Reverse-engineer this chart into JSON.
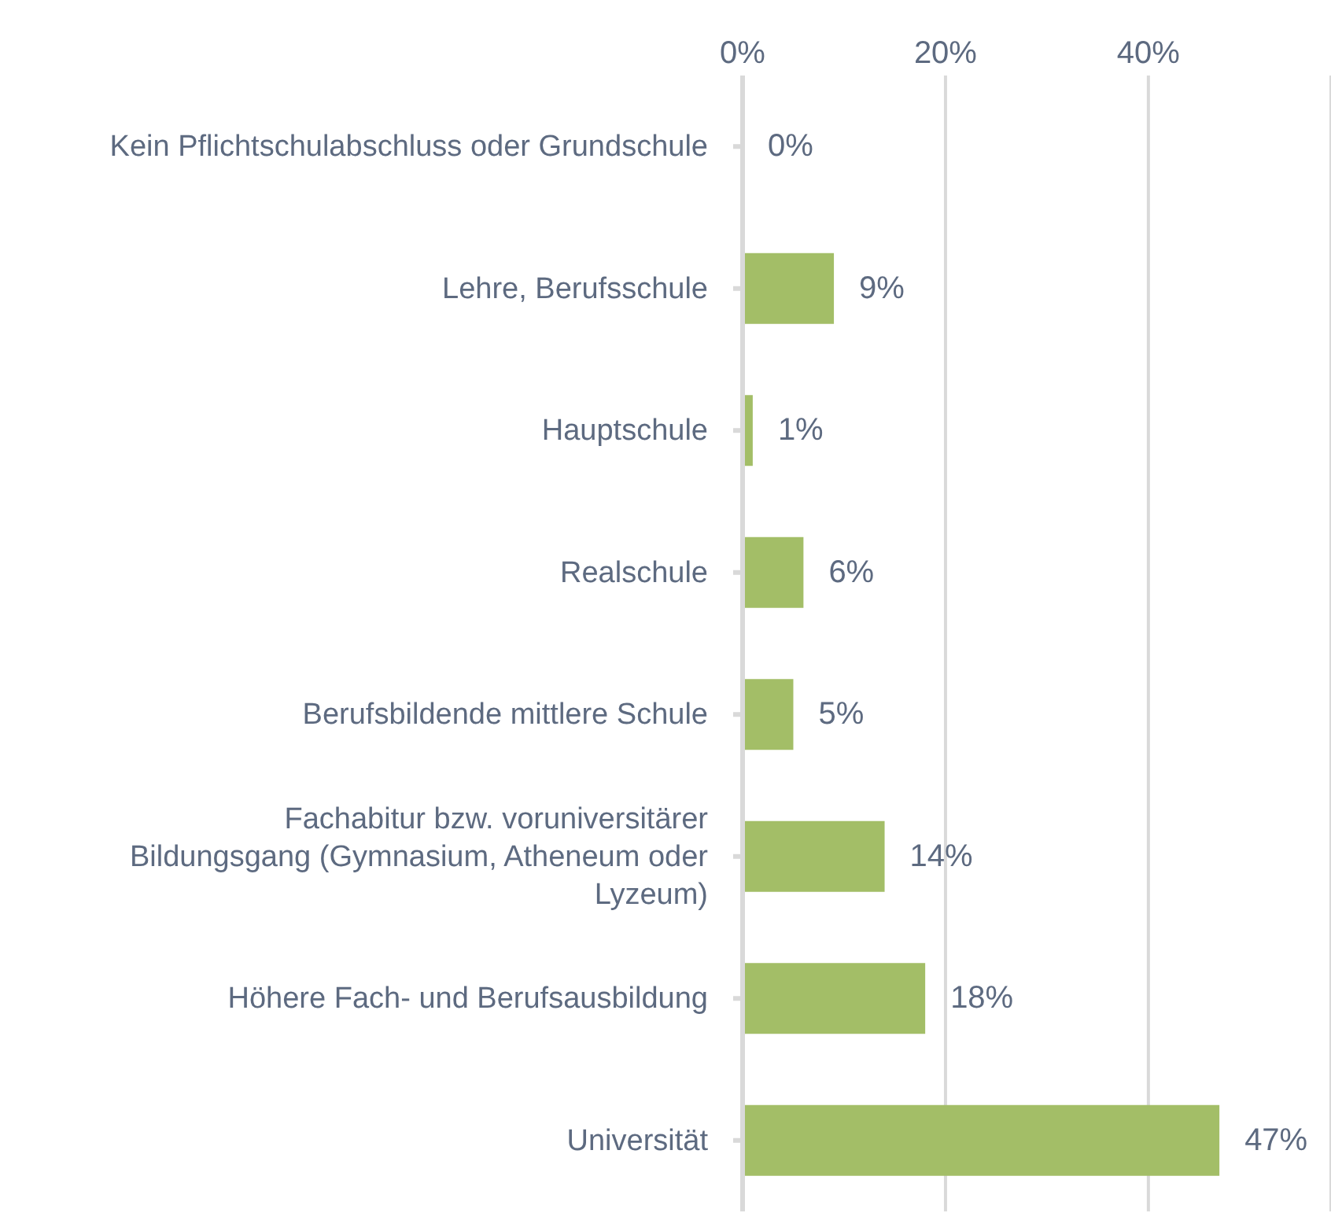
{
  "chart_data": {
    "type": "bar",
    "orientation": "horizontal",
    "categories": [
      "Kein Pflichtschulabschluss oder Grundschule",
      "Lehre, Berufsschule",
      "Hauptschule",
      "Realschule",
      "Berufsbildende mittlere Schule",
      "Fachabitur bzw. voruniversitärer Bildungsgang (Gymnasium, Atheneum oder Lyzeum)",
      "Höhere Fach- und Berufsausbildung",
      "Universität"
    ],
    "values": [
      0,
      9,
      1,
      6,
      5,
      14,
      18,
      47
    ],
    "value_labels": [
      "0%",
      "9%",
      "1%",
      "6%",
      "5%",
      "14%",
      "18%",
      "47%"
    ],
    "color": "#a3be67",
    "xlim": [
      0,
      58
    ],
    "xticks": [
      {
        "value": 0,
        "label": "0%"
      },
      {
        "value": 20,
        "label": "20%"
      },
      {
        "value": 40,
        "label": "40%"
      }
    ],
    "grid": "x"
  }
}
